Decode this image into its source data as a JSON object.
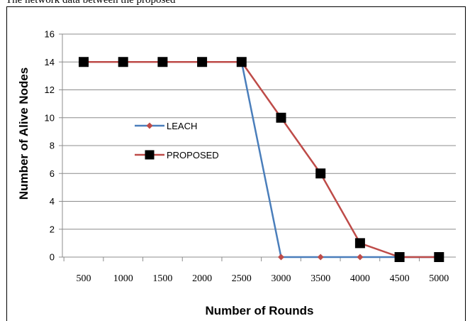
{
  "caption": "The network data between the proposed",
  "chart_data": {
    "type": "line",
    "x": [
      500,
      1000,
      1500,
      2000,
      2500,
      3000,
      3500,
      4000,
      4500,
      5000
    ],
    "xlabel": "Number of Rounds",
    "ylabel": "Number of Alive Nodes",
    "ylim": [
      0,
      16
    ],
    "yticks": [
      0,
      2,
      4,
      6,
      8,
      10,
      12,
      14,
      16
    ],
    "grid": true,
    "legend_position": "center-left",
    "series": [
      {
        "name": "LEACH",
        "values": [
          14,
          14,
          14,
          14,
          14,
          0,
          0,
          0,
          0,
          0
        ],
        "line_color": "#4a7ebb",
        "marker": "diamond",
        "marker_color": "#be4b48"
      },
      {
        "name": "PROPOSED",
        "values": [
          14,
          14,
          14,
          14,
          14,
          10,
          6,
          1,
          0,
          0
        ],
        "line_color": "#be4b48",
        "marker": "square",
        "marker_color": "#000000"
      }
    ]
  }
}
